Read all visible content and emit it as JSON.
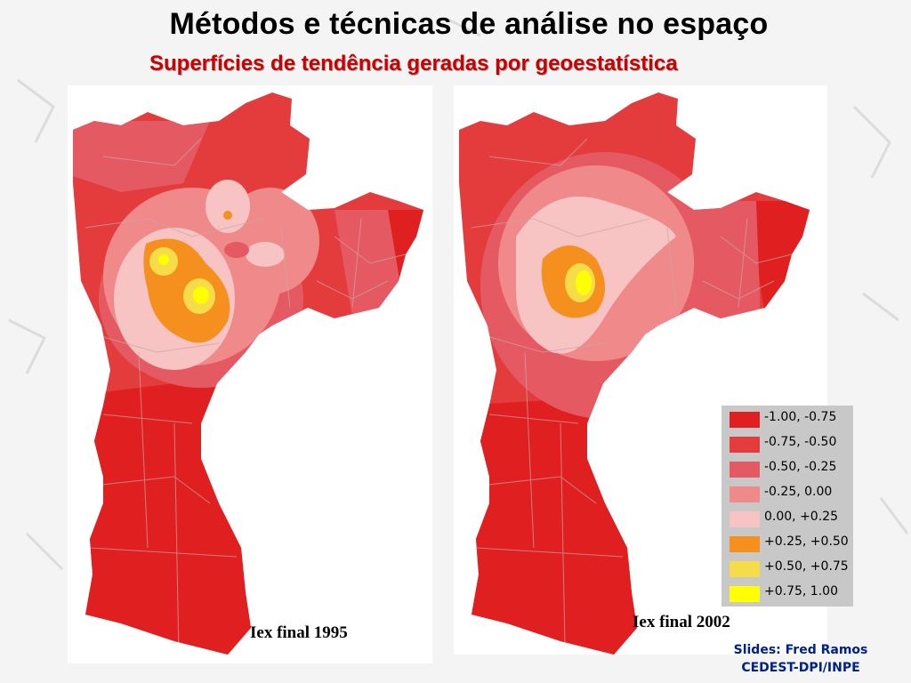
{
  "slide": {
    "title": "Métodos e técnicas de análise no espaço",
    "subtitle": "Superfícies de tendência geradas por geoestatística"
  },
  "maps": [
    {
      "id": "map-1995",
      "caption": "Iex final 1995"
    },
    {
      "id": "map-2002",
      "caption": "Iex final 2002"
    }
  ],
  "legend": {
    "items": [
      {
        "label": "-1.00, -0.75",
        "color": "#e02020"
      },
      {
        "label": "-0.75, -0.50",
        "color": "#e43c3c"
      },
      {
        "label": "-0.50, -0.25",
        "color": "#e55a62"
      },
      {
        "label": "-0.25, 0.00",
        "color": "#f08a8a"
      },
      {
        "label": "0.00, +0.25",
        "color": "#f7c3c3"
      },
      {
        "label": "+0.25, +0.50",
        "color": "#f5901f"
      },
      {
        "label": "+0.50, +0.75",
        "color": "#f7dc4a"
      },
      {
        "label": "+0.75, 1.00",
        "color": "#ffff00"
      }
    ]
  },
  "credits": {
    "line1": "Slides: Fred Ramos",
    "line2": "CEDEST-DPI/INPE"
  }
}
